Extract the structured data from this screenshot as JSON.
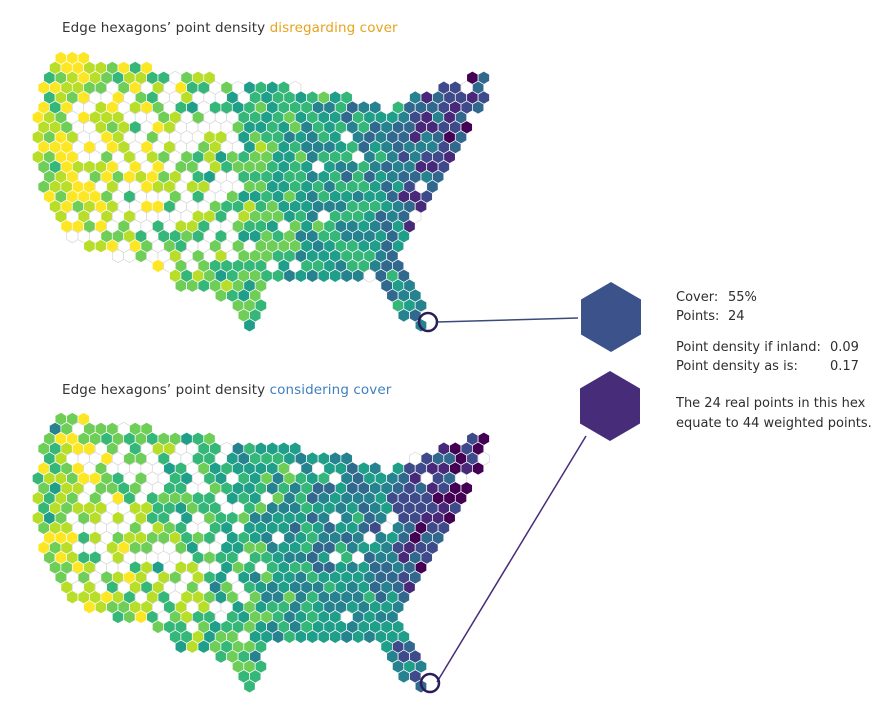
{
  "colors": {
    "viridis": [
      "#fde725",
      "#b8de29",
      "#6ece58",
      "#35b779",
      "#1f9e89",
      "#26828e",
      "#31688e",
      "#3e4a89",
      "#482878",
      "#440154"
    ],
    "empty_fill": "#ffffff",
    "empty_stroke": "#d6d6d6",
    "disregarding_accent": "#e7a31c",
    "considering_accent": "#3f7fbf",
    "hex_disregarding": "#3b528b",
    "hex_considering": "#472c7a",
    "callout_line": "#3b4a7a"
  },
  "maps": {
    "top": {
      "title_prefix": "Edge hexagons’ point density ",
      "title_accent": "disregarding cover"
    },
    "bottom": {
      "title_prefix": "Edge hexagons’ point density ",
      "title_accent": "considering cover"
    }
  },
  "callout": {
    "cover_label": "Cover:",
    "cover_value": "55%",
    "points_label": "Points:",
    "points_value": "24",
    "density_inland_label": "Point density if inland:",
    "density_inland_value": "0.09",
    "density_asis_label": "Point density as is:",
    "density_asis_value": "0.17",
    "note_line1": "The 24 real points in this hex",
    "note_line2": "equate to 44 weighted points."
  }
}
